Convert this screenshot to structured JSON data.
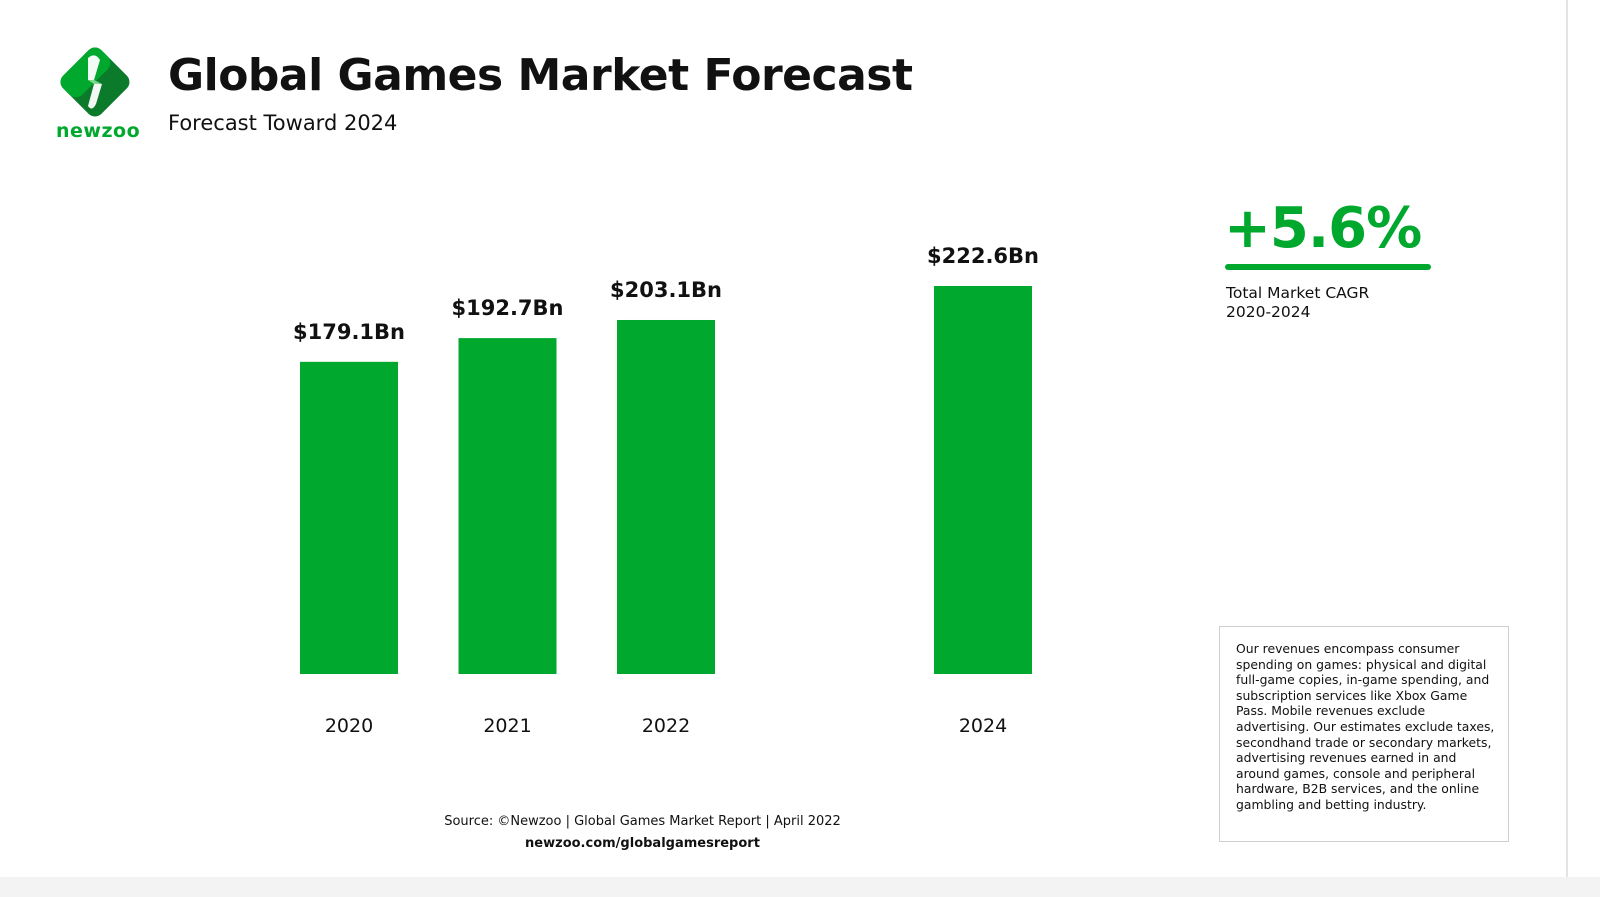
{
  "brand": {
    "logo_text": "newzoo",
    "green": "#00a82d",
    "dark_green": "#0b7a2a"
  },
  "header": {
    "title": "Global Games Market Forecast",
    "subtitle": "Forecast Toward 2024"
  },
  "cagr": {
    "value": "+5.6%",
    "label_line1": "Total Market CAGR",
    "label_line2": "2020-2024"
  },
  "note": "Our revenues encompass consumer spending on games: physical and digital full-game copies, in-game spending, and subscription services like Xbox Game Pass. Mobile revenues exclude advertising. Our estimates exclude taxes, secondhand trade or secondary markets, advertising revenues earned in and around games, console and peripheral hardware, B2B services, and the online gambling and betting industry.",
  "footer": {
    "source": "Source: ©Newzoo | Global Games Market Report | April 2022",
    "url": "newzoo.com/globalgamesreport"
  },
  "chart_data": {
    "type": "bar",
    "title": "Global Games Market Forecast",
    "subtitle": "Forecast Toward 2024",
    "categories": [
      "2020",
      "2021",
      "2022",
      "2024"
    ],
    "values": [
      179.1,
      192.7,
      203.1,
      222.6
    ],
    "data_labels": [
      "$179.1Bn",
      "$192.7Bn",
      "$203.1Bn",
      "$222.6Bn"
    ],
    "unit": "Bn USD",
    "ylim": [
      0,
      222.6
    ],
    "grid": false,
    "y_axis_shown": false,
    "bar_color": "#00a82d"
  }
}
